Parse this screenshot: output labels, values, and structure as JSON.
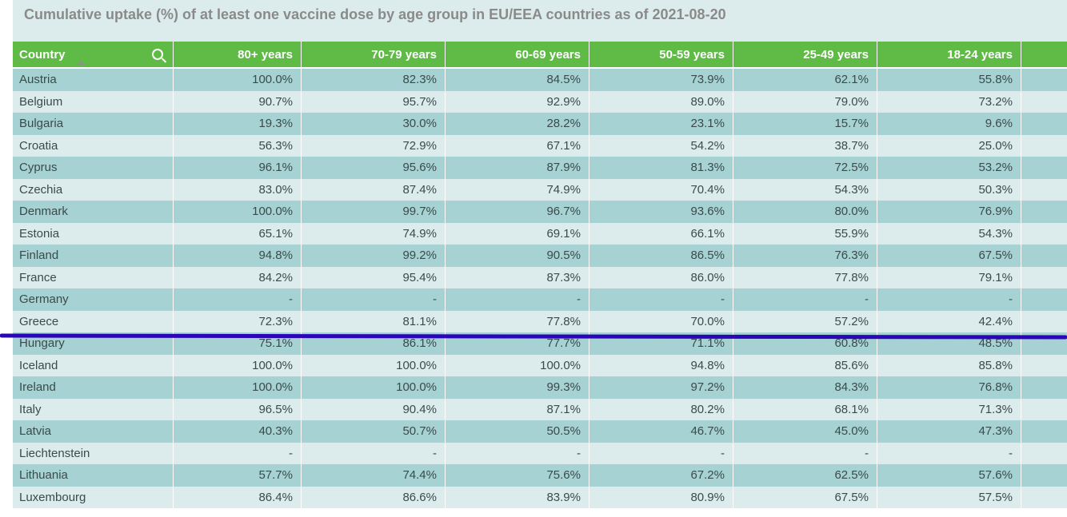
{
  "chart_data": {
    "type": "table",
    "title": "Cumulative uptake (%) of at least one vaccine dose by age group in EU/EEA countries as of 2021-08-20",
    "columns": [
      "Country",
      "80+ years",
      "70-79 years",
      "60-69 years",
      "50-59 years",
      "25-49 years",
      "18-24 years"
    ],
    "rows": [
      [
        "Austria",
        "100.0%",
        "82.3%",
        "84.5%",
        "73.9%",
        "62.1%",
        "55.8%"
      ],
      [
        "Belgium",
        "90.7%",
        "95.7%",
        "92.9%",
        "89.0%",
        "79.0%",
        "73.2%"
      ],
      [
        "Bulgaria",
        "19.3%",
        "30.0%",
        "28.2%",
        "23.1%",
        "15.7%",
        "9.6%"
      ],
      [
        "Croatia",
        "56.3%",
        "72.9%",
        "67.1%",
        "54.2%",
        "38.7%",
        "25.0%"
      ],
      [
        "Cyprus",
        "96.1%",
        "95.6%",
        "87.9%",
        "81.3%",
        "72.5%",
        "53.2%"
      ],
      [
        "Czechia",
        "83.0%",
        "87.4%",
        "74.9%",
        "70.4%",
        "54.3%",
        "50.3%"
      ],
      [
        "Denmark",
        "100.0%",
        "99.7%",
        "96.7%",
        "93.6%",
        "80.0%",
        "76.9%"
      ],
      [
        "Estonia",
        "65.1%",
        "74.9%",
        "69.1%",
        "66.1%",
        "55.9%",
        "54.3%"
      ],
      [
        "Finland",
        "94.8%",
        "99.2%",
        "90.5%",
        "86.5%",
        "76.3%",
        "67.5%"
      ],
      [
        "France",
        "84.2%",
        "95.4%",
        "87.3%",
        "86.0%",
        "77.8%",
        "79.1%"
      ],
      [
        "Germany",
        "-",
        "-",
        "-",
        "-",
        "-",
        "-"
      ],
      [
        "Greece",
        "72.3%",
        "81.1%",
        "77.8%",
        "70.0%",
        "57.2%",
        "42.4%"
      ],
      [
        "Hungary",
        "75.1%",
        "86.1%",
        "77.7%",
        "71.1%",
        "60.8%",
        "48.5%"
      ],
      [
        "Iceland",
        "100.0%",
        "100.0%",
        "100.0%",
        "94.8%",
        "85.6%",
        "85.8%"
      ],
      [
        "Ireland",
        "100.0%",
        "100.0%",
        "99.3%",
        "97.2%",
        "84.3%",
        "76.8%"
      ],
      [
        "Italy",
        "96.5%",
        "90.4%",
        "87.1%",
        "80.2%",
        "68.1%",
        "71.3%"
      ],
      [
        "Latvia",
        "40.3%",
        "50.7%",
        "50.5%",
        "46.7%",
        "45.0%",
        "47.3%"
      ],
      [
        "Liechtenstein",
        "-",
        "-",
        "-",
        "-",
        "-",
        "-"
      ],
      [
        "Lithuania",
        "57.7%",
        "74.4%",
        "75.6%",
        "67.2%",
        "62.5%",
        "57.6%"
      ],
      [
        "Luxembourg",
        "86.4%",
        "86.6%",
        "83.9%",
        "80.9%",
        "67.5%",
        "57.5%"
      ]
    ]
  },
  "colors": {
    "header_bg": "#5fbb46",
    "row_odd": "#a6d2d3",
    "row_even": "#dcecec",
    "annotation_line": "#2b06b8"
  },
  "icons": {
    "search": "search-icon",
    "sort": "sort-ascending-icon"
  }
}
